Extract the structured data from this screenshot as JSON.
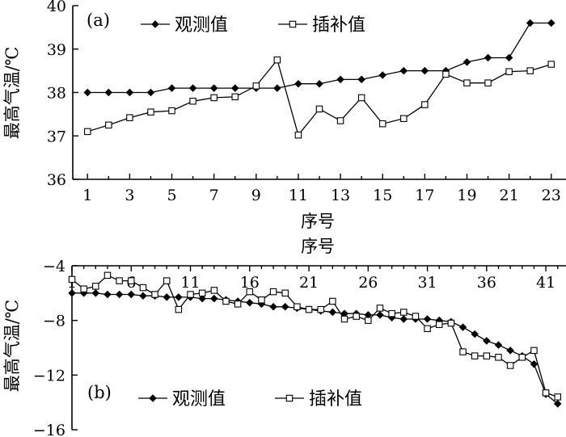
{
  "chart_data": [
    {
      "type": "line",
      "panel_label": "(a)",
      "xlabel": "序号",
      "ylabel": "最高气温/℃",
      "xlim": [
        0.3,
        23.7
      ],
      "ylim": [
        36,
        40
      ],
      "xticks": [
        1,
        3,
        5,
        7,
        9,
        11,
        13,
        15,
        17,
        19,
        21,
        23
      ],
      "yticks": [
        36,
        37,
        38,
        39,
        40
      ],
      "legend_position": "top-right",
      "grid": false,
      "x": [
        1,
        2,
        3,
        4,
        5,
        6,
        7,
        8,
        9,
        10,
        11,
        12,
        13,
        14,
        15,
        16,
        17,
        18,
        19,
        20,
        21,
        22,
        23
      ],
      "series": [
        {
          "name": "观测值",
          "marker": "filled-diamond",
          "values": [
            38.0,
            38.0,
            38.0,
            38.0,
            38.1,
            38.1,
            38.1,
            38.1,
            38.1,
            38.1,
            38.2,
            38.2,
            38.3,
            38.3,
            38.4,
            38.5,
            38.5,
            38.5,
            38.7,
            38.8,
            38.8,
            39.6,
            39.6
          ]
        },
        {
          "name": "插补值",
          "marker": "open-square",
          "values": [
            37.1,
            37.25,
            37.42,
            37.55,
            37.58,
            37.8,
            37.88,
            37.9,
            38.15,
            38.75,
            37.02,
            37.62,
            37.35,
            37.88,
            37.28,
            37.4,
            37.72,
            38.42,
            38.22,
            38.22,
            38.48,
            38.5,
            38.65
          ]
        }
      ]
    },
    {
      "type": "line",
      "panel_label": "(b)",
      "xlabel": "序号",
      "ylabel": "最高气温/℃",
      "xlim": [
        1,
        42.7
      ],
      "ylim": [
        -16,
        -4
      ],
      "xticks": [
        1,
        6,
        11,
        16,
        21,
        26,
        31,
        36,
        41
      ],
      "yticks": [
        -4,
        -8,
        -12,
        -16
      ],
      "legend_position": "bottom-left",
      "grid": false,
      "x": [
        1,
        2,
        3,
        4,
        5,
        6,
        7,
        8,
        9,
        10,
        11,
        12,
        13,
        14,
        15,
        16,
        17,
        18,
        19,
        20,
        21,
        22,
        23,
        24,
        25,
        26,
        27,
        28,
        29,
        30,
        31,
        32,
        33,
        34,
        35,
        36,
        37,
        38,
        39,
        40,
        41,
        42
      ],
      "series": [
        {
          "name": "观测值",
          "marker": "filled-diamond",
          "values": [
            -6.0,
            -6.0,
            -6.0,
            -6.1,
            -6.1,
            -6.1,
            -6.2,
            -6.2,
            -6.3,
            -6.3,
            -6.3,
            -6.4,
            -6.4,
            -6.5,
            -6.6,
            -6.7,
            -6.8,
            -7.0,
            -7.0,
            -7.1,
            -7.2,
            -7.3,
            -7.4,
            -7.5,
            -7.5,
            -7.6,
            -7.6,
            -7.8,
            -7.9,
            -7.9,
            -7.9,
            -8.0,
            -8.1,
            -8.5,
            -9.0,
            -9.5,
            -9.8,
            -10.2,
            -10.6,
            -11.2,
            -13.4,
            -14.1
          ]
        },
        {
          "name": "插补值",
          "marker": "open-square",
          "values": [
            -5.0,
            -5.7,
            -5.5,
            -4.7,
            -5.1,
            -5.1,
            -5.6,
            -6.1,
            -5.1,
            -7.2,
            -6.1,
            -6.0,
            -5.8,
            -6.6,
            -6.8,
            -5.9,
            -6.5,
            -5.9,
            -6.0,
            -7.0,
            -7.2,
            -7.2,
            -6.6,
            -7.9,
            -7.7,
            -8.0,
            -7.1,
            -7.5,
            -7.4,
            -7.7,
            -8.6,
            -8.3,
            -8.2,
            -10.3,
            -10.6,
            -10.6,
            -10.7,
            -11.3,
            -10.7,
            -10.2,
            -13.3,
            -13.6
          ]
        }
      ]
    }
  ]
}
